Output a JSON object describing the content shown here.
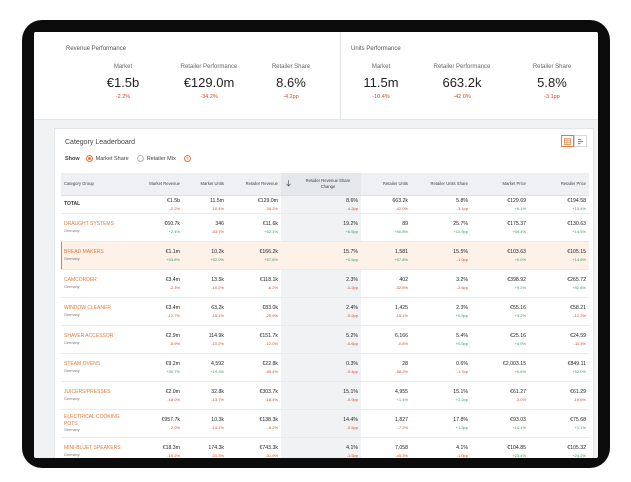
{
  "revenue": {
    "title": "Revenue Performance",
    "items": [
      {
        "label": "Market",
        "value": "€1.5b",
        "delta": "-2.2%"
      },
      {
        "label": "Retailer Performance",
        "value": "€129.0m",
        "delta": "-34.2%"
      },
      {
        "label": "Retailer Share",
        "value": "8.6%",
        "delta": "-4.2pp"
      }
    ]
  },
  "units": {
    "title": "Units Performance",
    "items": [
      {
        "label": "Market",
        "value": "11.5m",
        "delta": "-10.4%"
      },
      {
        "label": "Retailer Performance",
        "value": "663.2k",
        "delta": "-42.0%"
      },
      {
        "label": "Retailer Share",
        "value": "5.8%",
        "delta": "-3.1pp"
      }
    ]
  },
  "leaderboard": {
    "title": "Category Leaderboard",
    "show_label": "Show",
    "options": [
      "Market Share",
      "Retailer Mix"
    ],
    "selected_option": "Market Share",
    "help_glyph": "?",
    "toggle_icons": [
      "table-icon",
      "bar-chart-icon"
    ],
    "columns": [
      "Category Group",
      "Market Revenue",
      "Market Units",
      "Retailer Revenue",
      "",
      "Retailer Revenue Share Change",
      "Retailer Units",
      "Retailer Units Share",
      "Market Price",
      "Retailer Price"
    ],
    "rows": [
      {
        "name": "TOTAL",
        "country": "",
        "cells": [
          [
            "€1.5b",
            "-2.2%"
          ],
          [
            "11.5m",
            "-10.4%"
          ],
          [
            "€129.0m",
            "-34.2%"
          ],
          [
            "8.6%",
            "-4.2pp"
          ],
          [
            "663.2k",
            "-42.0%"
          ],
          [
            "5.8%",
            "-3.1pp"
          ],
          [
            "€129.69",
            "+9.1%"
          ],
          [
            "€194.58",
            "+13.4%"
          ]
        ]
      },
      {
        "name": "DRAUGHT SYSTEMS",
        "country": "Germany",
        "cells": [
          [
            "€60.7k",
            "+2.4%"
          ],
          [
            "346",
            "-33.7%"
          ],
          [
            "€11.6k",
            "+52.1%"
          ],
          [
            "19.2%",
            "+6.5pp"
          ],
          [
            "89",
            "+50.8%"
          ],
          [
            "25.7%",
            "+12.9pp"
          ],
          [
            "€175.37",
            "+54.4%"
          ],
          [
            "€130.63",
            "+14.5%"
          ]
        ]
      },
      {
        "name": "BREAD MAKERS",
        "country": "Germany",
        "cells": [
          [
            "€1.1m",
            "+53.8%"
          ],
          [
            "10.2k",
            "+52.0%"
          ],
          [
            "€166.2k",
            "+57.8%"
          ],
          [
            "15.7%",
            "+0.5pp"
          ],
          [
            "1,581",
            "+57.8%"
          ],
          [
            "15.5%",
            "-1.0pp"
          ],
          [
            "€103.63",
            "+0.0%"
          ],
          [
            "€105.15",
            "+14.6%"
          ]
        ]
      },
      {
        "name": "CAMCORDER",
        "country": "Germany",
        "cells": [
          [
            "€3.4m",
            "-2.3%"
          ],
          [
            "13.5k",
            "-10.2%"
          ],
          [
            "€118.1k",
            "-6.2%"
          ],
          [
            "2.3%",
            "-0.2pp"
          ],
          [
            "402",
            "-32.5%"
          ],
          [
            "3.2%",
            "-2.6pp"
          ],
          [
            "€398.92",
            "+9.2%"
          ],
          [
            "€265.72",
            "+92.6%"
          ]
        ]
      },
      {
        "name": "WINDOW CLEANER",
        "country": "Germany",
        "cells": [
          [
            "€3.4m",
            "-12.7%"
          ],
          [
            "63.2k",
            "-15.1%"
          ],
          [
            "€83.0k",
            "-20.9%"
          ],
          [
            "2.4%",
            "-0.2pp"
          ],
          [
            "1,425",
            "-15.1%"
          ],
          [
            "2.3%",
            "+0.5pp"
          ],
          [
            "€55.16",
            "+3.2%"
          ],
          [
            "€58.21",
            "-12.3%"
          ]
        ]
      },
      {
        "name": "SHAVER ACCESSOR",
        "country": "Germany",
        "cells": [
          [
            "€2.9m",
            "-5.9%"
          ],
          [
            "114.9k",
            "-10.2%"
          ],
          [
            "€151.7k",
            "-12.0%"
          ],
          [
            "5.2%",
            "-0.6pp"
          ],
          [
            "6,166",
            "-0.8%"
          ],
          [
            "5.4%",
            "+0.5pp"
          ],
          [
            "€25.16",
            "+4.9%"
          ],
          [
            "€24.59",
            "-11.3%"
          ]
        ]
      },
      {
        "name": "STEAM OVENS",
        "country": "Germany",
        "cells": [
          [
            "€9.2m",
            "+30.7%"
          ],
          [
            "4,592",
            "+19.3%"
          ],
          [
            "€22.8k",
            "-65.4%"
          ],
          [
            "0.3%",
            "-0.4pp"
          ],
          [
            "28",
            "-58.2%"
          ],
          [
            "0.6%",
            "-1.7pp"
          ],
          [
            "€2,003.15",
            "+9.5%"
          ],
          [
            "€849.11",
            "+52.0%"
          ]
        ]
      },
      {
        "name": "JUICERS/PRESSES",
        "country": "Germany",
        "cells": [
          [
            "€2.0m",
            "-18.0%"
          ],
          [
            "32.8k",
            "-13.7%"
          ],
          [
            "€303.7k",
            "-18.4%"
          ],
          [
            "15.1%",
            "-0.9pp"
          ],
          [
            "4,955",
            "+1.4%"
          ],
          [
            "15.1%",
            "+2.2pp"
          ],
          [
            "€61.27",
            "-3.0%"
          ],
          [
            "€61.29",
            "-19.6%"
          ]
        ]
      },
      {
        "name": "ELECTRICAL COOKING POTS",
        "country": "Germany",
        "cells": [
          [
            "€957.7k",
            "-2.0%"
          ],
          [
            "10.3k",
            "-14.1%"
          ],
          [
            "€138.3k",
            "-6.2%"
          ],
          [
            "14.4%",
            "-0.5pp"
          ],
          [
            "1,827",
            "-7.2%"
          ],
          [
            "17.8%",
            "+1.3pp"
          ],
          [
            "€93.03",
            "+14.1%"
          ],
          [
            "€75.68",
            "+1.1%"
          ]
        ]
      },
      {
        "name": "MINI-BLUET SPEAKERS",
        "country": "Germany",
        "cells": [
          [
            "€18.3m",
            "-15.2%"
          ],
          [
            "174.3k",
            "-31.3%"
          ],
          [
            "€743.3k",
            "-31.9%"
          ],
          [
            "4.1%",
            "-1.5pp"
          ],
          [
            "7,058",
            "-45.3%"
          ],
          [
            "4.1%",
            "-1.0pp"
          ],
          [
            "€104.85",
            "+23.4%"
          ],
          [
            "€105.32",
            "+24.2%"
          ]
        ]
      }
    ]
  }
}
